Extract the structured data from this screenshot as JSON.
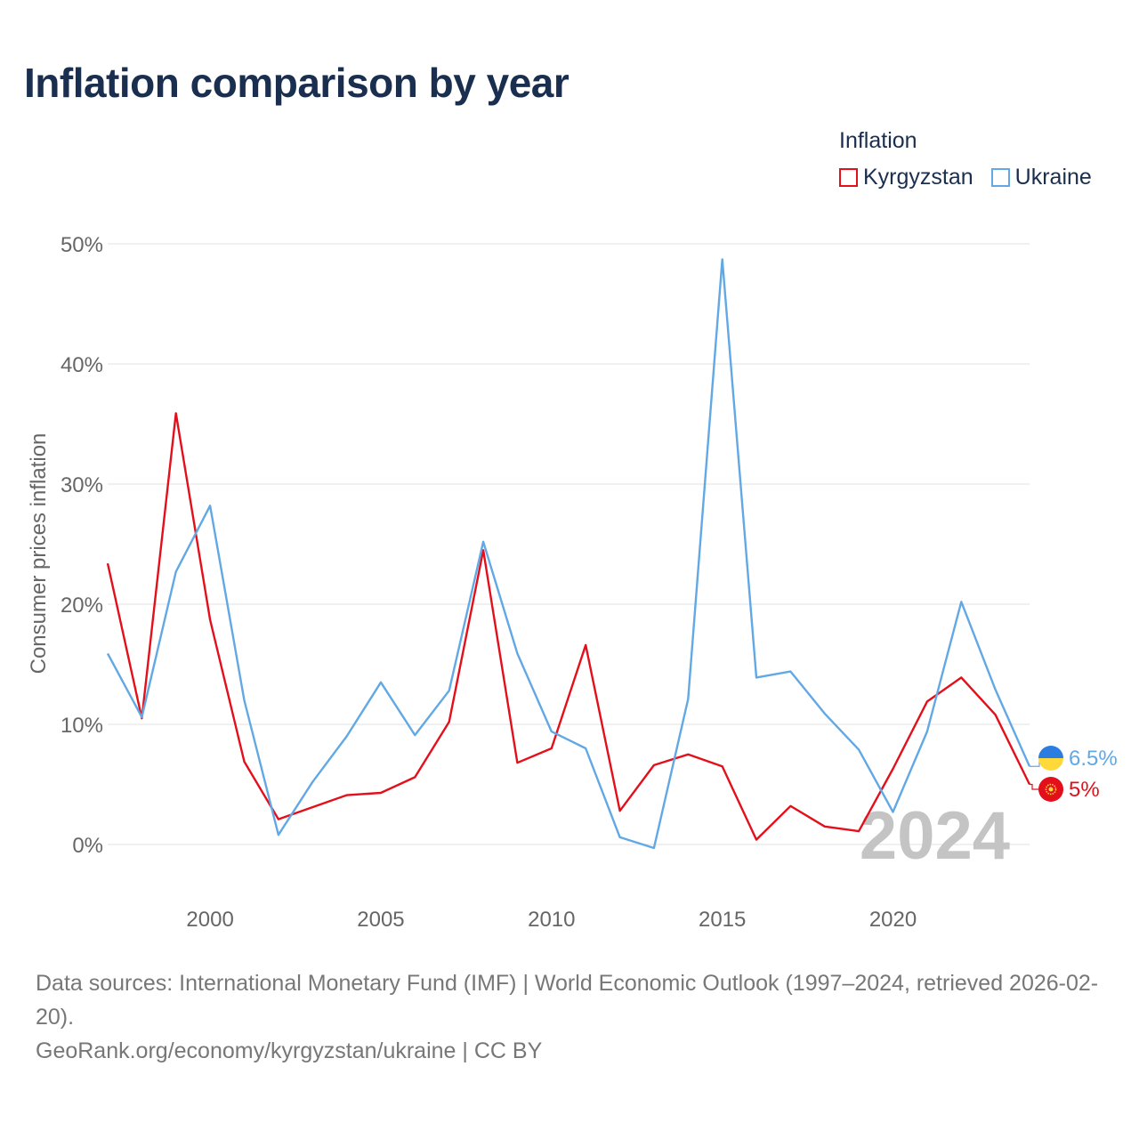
{
  "title": "Inflation comparison by year",
  "legend": {
    "title": "Inflation",
    "items": [
      {
        "label": "Kyrgyzstan",
        "color": "#e3101b"
      },
      {
        "label": "Ukraine",
        "color": "#62a8e5"
      }
    ]
  },
  "chart_data": {
    "type": "line",
    "title": "Inflation comparison by year",
    "xlabel": "",
    "ylabel": "Consumer prices inflation",
    "xlim": [
      1997,
      2024
    ],
    "ylim": [
      -5,
      50
    ],
    "yticks": [
      0,
      10,
      20,
      30,
      40,
      50
    ],
    "ytick_labels": [
      "0%",
      "10%",
      "20%",
      "30%",
      "40%",
      "50%"
    ],
    "xticks": [
      2000,
      2005,
      2010,
      2015,
      2020
    ],
    "xtick_labels": [
      "2000",
      "2005",
      "2010",
      "2015",
      "2020"
    ],
    "grid": true,
    "year_watermark": "2024",
    "x": [
      1997,
      1998,
      1999,
      2000,
      2001,
      2002,
      2003,
      2004,
      2005,
      2006,
      2007,
      2008,
      2009,
      2010,
      2011,
      2012,
      2013,
      2014,
      2015,
      2016,
      2017,
      2018,
      2019,
      2020,
      2021,
      2022,
      2023,
      2024
    ],
    "series": [
      {
        "name": "Kyrgyzstan",
        "color": "#e3101b",
        "end_label": "5%",
        "flag": "kyrgyzstan-flag-icon",
        "values": [
          23.4,
          10.5,
          35.9,
          18.7,
          6.9,
          2.1,
          3.1,
          4.1,
          4.3,
          5.6,
          10.2,
          24.5,
          6.8,
          8.0,
          16.6,
          2.8,
          6.6,
          7.5,
          6.5,
          0.4,
          3.2,
          1.5,
          1.1,
          6.3,
          11.9,
          13.9,
          10.8,
          5.0
        ]
      },
      {
        "name": "Ukraine",
        "color": "#62a8e5",
        "end_label": "6.5%",
        "flag": "ukraine-flag-icon",
        "values": [
          15.9,
          10.6,
          22.7,
          28.2,
          12.0,
          0.8,
          5.2,
          9.0,
          13.5,
          9.1,
          12.8,
          25.2,
          15.9,
          9.4,
          8.0,
          0.6,
          -0.3,
          12.1,
          48.7,
          13.9,
          14.4,
          10.9,
          7.9,
          2.7,
          9.4,
          20.2,
          12.9,
          6.5
        ]
      }
    ]
  },
  "footer": {
    "sources": "Data sources: International Monetary Fund (IMF) | World Economic Outlook (1997–2024, retrieved 2026-02-20).",
    "attribution": "GeoRank.org/economy/kyrgyzstan/ukraine | CC BY"
  }
}
